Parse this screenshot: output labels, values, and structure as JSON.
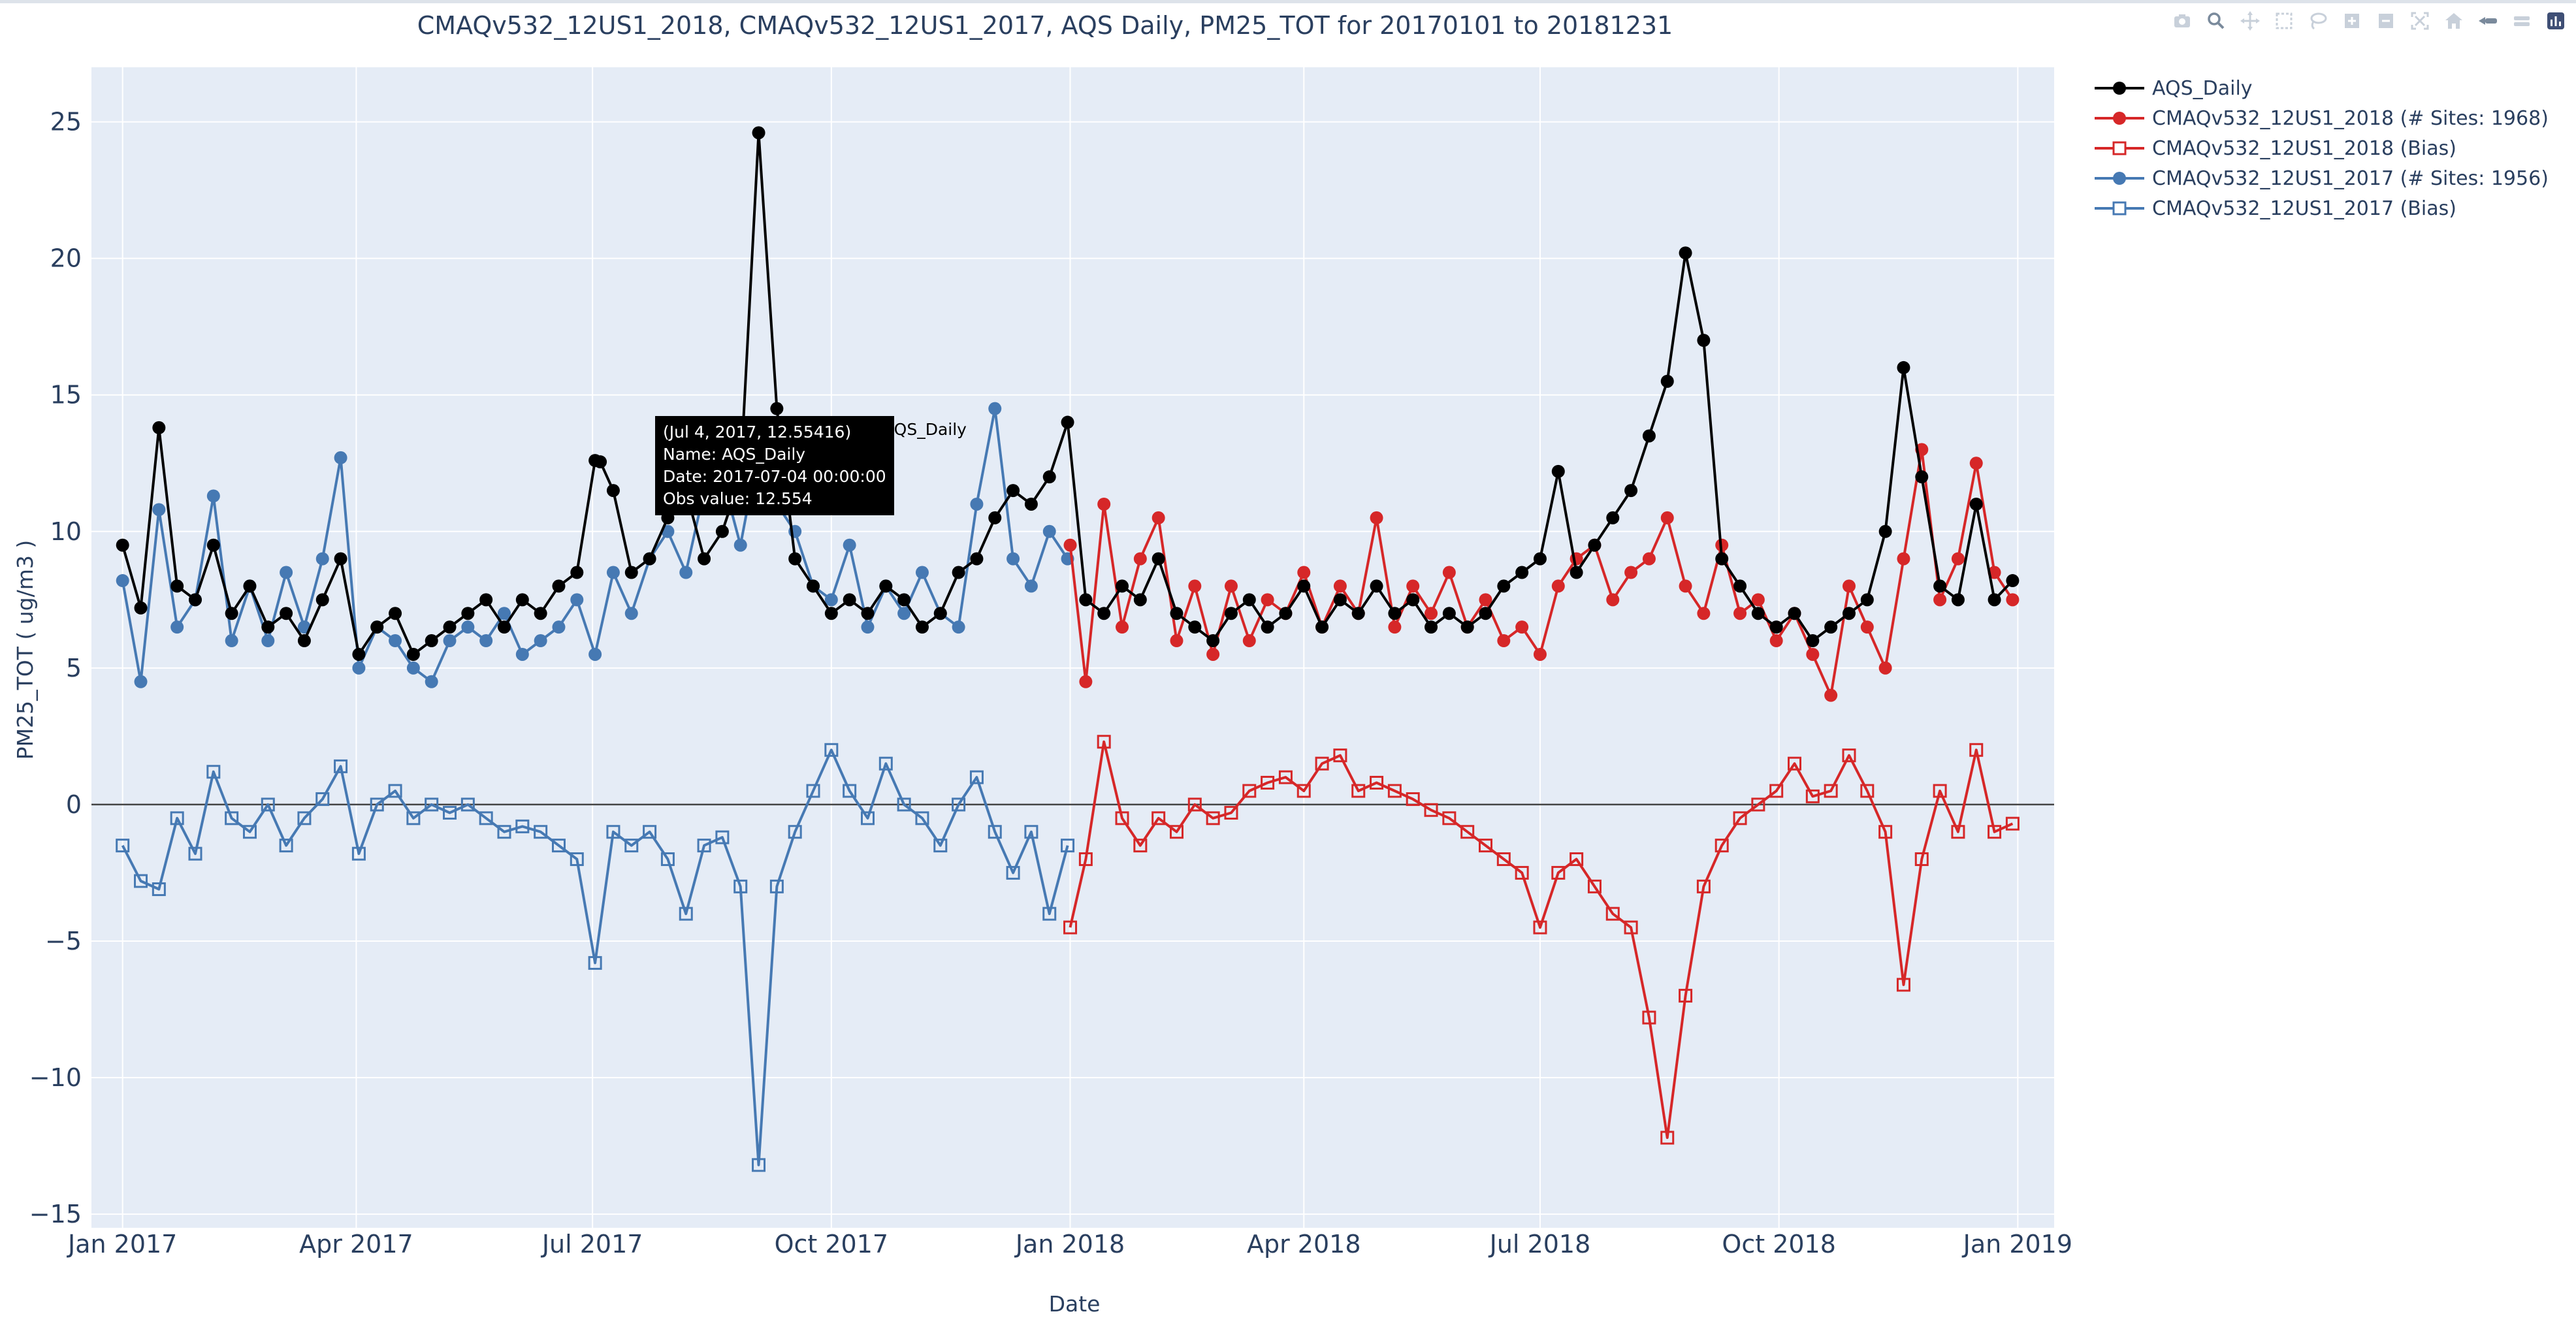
{
  "modebar": {
    "icons": [
      "camera-icon",
      "zoom-icon",
      "pan-icon",
      "box-select-icon",
      "lasso-icon",
      "zoom-in-icon",
      "zoom-out-icon",
      "autoscale-icon",
      "reset-axes-icon",
      "spike-lines-icon",
      "hover-closest-icon",
      "hover-compare-icon",
      "plotly-logo-icon"
    ]
  },
  "tooltip": {
    "header": "(Jul 4, 2017, 12.55416)",
    "line_name": "Name:  AQS_Daily",
    "line_date": "Date:  2017-07-04 00:00:00",
    "line_value": "Obs value:  12.554",
    "trace_name": "AQS_Daily"
  },
  "colors": {
    "obs": "#000000",
    "model_2018": "#d62728",
    "model_2017": "#4679b3",
    "plot_bg": "#e5ecf6",
    "grid": "#ffffff",
    "zero_line": "#444444",
    "text": "#2a3f5f"
  },
  "chart_data": {
    "type": "line",
    "title": "CMAQv532_12US1_2018, CMAQv532_12US1_2017, AQS Daily, PM25_TOT for 20170101 to 20181231",
    "xlabel": "Date",
    "ylabel": "PM25_TOT  ( ug/m3 )",
    "xlim": [
      "2016-12-20",
      "2019-01-15"
    ],
    "ylim": [
      -15.5,
      27
    ],
    "x_ticks": [
      "Jan 2017",
      "Apr 2017",
      "Jul 2017",
      "Oct 2017",
      "Jan 2018",
      "Apr 2018",
      "Jul 2018",
      "Oct 2018",
      "Jan 2019"
    ],
    "y_ticks": [
      -15,
      -10,
      -5,
      0,
      5,
      10,
      15,
      20,
      25
    ],
    "grid": true,
    "legend": "top-right, outside plot",
    "sampling": "weekly approximate reading of daily series",
    "series": [
      {
        "name": "AQS_Daily",
        "marker": "filled-circle",
        "color": "#000000",
        "x": [
          "2017-01-01",
          "2017-01-08",
          "2017-01-15",
          "2017-01-22",
          "2017-01-29",
          "2017-02-05",
          "2017-02-12",
          "2017-02-19",
          "2017-02-26",
          "2017-03-05",
          "2017-03-12",
          "2017-03-19",
          "2017-03-26",
          "2017-04-02",
          "2017-04-09",
          "2017-04-16",
          "2017-04-23",
          "2017-04-30",
          "2017-05-07",
          "2017-05-14",
          "2017-05-21",
          "2017-05-28",
          "2017-06-04",
          "2017-06-11",
          "2017-06-18",
          "2017-06-25",
          "2017-07-02",
          "2017-07-04",
          "2017-07-09",
          "2017-07-16",
          "2017-07-23",
          "2017-07-30",
          "2017-08-06",
          "2017-08-13",
          "2017-08-20",
          "2017-08-27",
          "2017-09-03",
          "2017-09-10",
          "2017-09-17",
          "2017-09-24",
          "2017-10-01",
          "2017-10-08",
          "2017-10-15",
          "2017-10-22",
          "2017-10-29",
          "2017-11-05",
          "2017-11-12",
          "2017-11-19",
          "2017-11-26",
          "2017-12-03",
          "2017-12-10",
          "2017-12-17",
          "2017-12-24",
          "2017-12-31",
          "2018-01-07",
          "2018-01-14",
          "2018-01-21",
          "2018-01-28",
          "2018-02-04",
          "2018-02-11",
          "2018-02-18",
          "2018-02-25",
          "2018-03-04",
          "2018-03-11",
          "2018-03-18",
          "2018-03-25",
          "2018-04-01",
          "2018-04-08",
          "2018-04-15",
          "2018-04-22",
          "2018-04-29",
          "2018-05-06",
          "2018-05-13",
          "2018-05-20",
          "2018-05-27",
          "2018-06-03",
          "2018-06-10",
          "2018-06-17",
          "2018-06-24",
          "2018-07-01",
          "2018-07-08",
          "2018-07-15",
          "2018-07-22",
          "2018-07-29",
          "2018-08-05",
          "2018-08-12",
          "2018-08-19",
          "2018-08-26",
          "2018-09-02",
          "2018-09-09",
          "2018-09-16",
          "2018-09-23",
          "2018-09-30",
          "2018-10-07",
          "2018-10-14",
          "2018-10-21",
          "2018-10-28",
          "2018-11-04",
          "2018-11-11",
          "2018-11-18",
          "2018-11-25",
          "2018-12-02",
          "2018-12-09",
          "2018-12-16",
          "2018-12-23",
          "2018-12-30"
        ],
        "y": [
          9.5,
          7.2,
          13.8,
          8.0,
          7.5,
          9.5,
          7.0,
          8.0,
          6.5,
          7.0,
          6.0,
          7.5,
          9.0,
          5.5,
          6.5,
          7.0,
          5.5,
          6.0,
          6.5,
          7.0,
          7.5,
          6.5,
          7.5,
          7.0,
          8.0,
          8.5,
          12.6,
          12.55,
          11.5,
          8.5,
          9.0,
          10.5,
          11.5,
          9.0,
          10.0,
          12.0,
          24.6,
          14.5,
          9.0,
          8.0,
          7.0,
          7.5,
          7.0,
          8.0,
          7.5,
          6.5,
          7.0,
          8.5,
          9.0,
          10.5,
          11.5,
          11.0,
          12.0,
          14.0,
          7.5,
          7.0,
          8.0,
          7.5,
          9.0,
          7.0,
          6.5,
          6.0,
          7.0,
          7.5,
          6.5,
          7.0,
          8.0,
          6.5,
          7.5,
          7.0,
          8.0,
          7.0,
          7.5,
          6.5,
          7.0,
          6.5,
          7.0,
          8.0,
          8.5,
          9.0,
          12.2,
          8.5,
          9.5,
          10.5,
          11.5,
          13.5,
          15.5,
          20.2,
          17.0,
          9.0,
          8.0,
          7.0,
          6.5,
          7.0,
          6.0,
          6.5,
          7.0,
          7.5,
          10.0,
          16.0,
          12.0,
          8.0,
          7.5,
          11.0,
          7.5,
          8.2
        ]
      },
      {
        "name": "CMAQv532_12US1_2018 (# Sites: 1968)",
        "marker": "filled-circle",
        "color": "#d62728",
        "x": [
          "2018-01-01",
          "2018-01-07",
          "2018-01-14",
          "2018-01-21",
          "2018-01-28",
          "2018-02-04",
          "2018-02-11",
          "2018-02-18",
          "2018-02-25",
          "2018-03-04",
          "2018-03-11",
          "2018-03-18",
          "2018-03-25",
          "2018-04-01",
          "2018-04-08",
          "2018-04-15",
          "2018-04-22",
          "2018-04-29",
          "2018-05-06",
          "2018-05-13",
          "2018-05-20",
          "2018-05-27",
          "2018-06-03",
          "2018-06-10",
          "2018-06-17",
          "2018-06-24",
          "2018-07-01",
          "2018-07-08",
          "2018-07-15",
          "2018-07-22",
          "2018-07-29",
          "2018-08-05",
          "2018-08-12",
          "2018-08-19",
          "2018-08-26",
          "2018-09-02",
          "2018-09-09",
          "2018-09-16",
          "2018-09-23",
          "2018-09-30",
          "2018-10-07",
          "2018-10-14",
          "2018-10-21",
          "2018-10-28",
          "2018-11-04",
          "2018-11-11",
          "2018-11-18",
          "2018-11-25",
          "2018-12-02",
          "2018-12-09",
          "2018-12-16",
          "2018-12-23",
          "2018-12-30"
        ],
        "y": [
          9.5,
          4.5,
          11.0,
          6.5,
          9.0,
          10.5,
          6.0,
          8.0,
          5.5,
          8.0,
          6.0,
          7.5,
          7.0,
          8.5,
          6.5,
          8.0,
          7.0,
          10.5,
          6.5,
          8.0,
          7.0,
          8.5,
          6.5,
          7.5,
          6.0,
          6.5,
          5.5,
          8.0,
          9.0,
          9.5,
          7.5,
          8.5,
          9.0,
          10.5,
          8.0,
          7.0,
          9.5,
          7.0,
          7.5,
          6.0,
          7.0,
          5.5,
          4.0,
          8.0,
          6.5,
          5.0,
          9.0,
          13.0,
          7.5,
          9.0,
          12.5,
          8.5,
          7.5
        ]
      },
      {
        "name": "CMAQv532_12US1_2018  (Bias)",
        "marker": "open-square",
        "color": "#d62728",
        "x": [
          "2018-01-01",
          "2018-01-07",
          "2018-01-14",
          "2018-01-21",
          "2018-01-28",
          "2018-02-04",
          "2018-02-11",
          "2018-02-18",
          "2018-02-25",
          "2018-03-04",
          "2018-03-11",
          "2018-03-18",
          "2018-03-25",
          "2018-04-01",
          "2018-04-08",
          "2018-04-15",
          "2018-04-22",
          "2018-04-29",
          "2018-05-06",
          "2018-05-13",
          "2018-05-20",
          "2018-05-27",
          "2018-06-03",
          "2018-06-10",
          "2018-06-17",
          "2018-06-24",
          "2018-07-01",
          "2018-07-08",
          "2018-07-15",
          "2018-07-22",
          "2018-07-29",
          "2018-08-05",
          "2018-08-12",
          "2018-08-19",
          "2018-08-26",
          "2018-09-02",
          "2018-09-09",
          "2018-09-16",
          "2018-09-23",
          "2018-09-30",
          "2018-10-07",
          "2018-10-14",
          "2018-10-21",
          "2018-10-28",
          "2018-11-04",
          "2018-11-11",
          "2018-11-18",
          "2018-11-25",
          "2018-12-02",
          "2018-12-09",
          "2018-12-16",
          "2018-12-23",
          "2018-12-30"
        ],
        "y": [
          -4.5,
          -2.0,
          2.3,
          -0.5,
          -1.5,
          -0.5,
          -1.0,
          0.0,
          -0.5,
          -0.3,
          0.5,
          0.8,
          1.0,
          0.5,
          1.5,
          1.8,
          0.5,
          0.8,
          0.5,
          0.2,
          -0.2,
          -0.5,
          -1.0,
          -1.5,
          -2.0,
          -2.5,
          -4.5,
          -2.5,
          -2.0,
          -3.0,
          -4.0,
          -4.5,
          -7.8,
          -12.2,
          -7.0,
          -3.0,
          -1.5,
          -0.5,
          0.0,
          0.5,
          1.5,
          0.3,
          0.5,
          1.8,
          0.5,
          -1.0,
          -6.6,
          -2.0,
          0.5,
          -1.0,
          2.0,
          -1.0,
          -0.7
        ]
      },
      {
        "name": "CMAQv532_12US1_2017 (# Sites: 1956)",
        "marker": "filled-circle",
        "color": "#4679b3",
        "x": [
          "2017-01-01",
          "2017-01-08",
          "2017-01-15",
          "2017-01-22",
          "2017-01-29",
          "2017-02-05",
          "2017-02-12",
          "2017-02-19",
          "2017-02-26",
          "2017-03-05",
          "2017-03-12",
          "2017-03-19",
          "2017-03-26",
          "2017-04-02",
          "2017-04-09",
          "2017-04-16",
          "2017-04-23",
          "2017-04-30",
          "2017-05-07",
          "2017-05-14",
          "2017-05-21",
          "2017-05-28",
          "2017-06-04",
          "2017-06-11",
          "2017-06-18",
          "2017-06-25",
          "2017-07-02",
          "2017-07-09",
          "2017-07-16",
          "2017-07-23",
          "2017-07-30",
          "2017-08-06",
          "2017-08-13",
          "2017-08-20",
          "2017-08-27",
          "2017-09-03",
          "2017-09-10",
          "2017-09-17",
          "2017-09-24",
          "2017-10-01",
          "2017-10-08",
          "2017-10-15",
          "2017-10-22",
          "2017-10-29",
          "2017-11-05",
          "2017-11-12",
          "2017-11-19",
          "2017-11-26",
          "2017-12-03",
          "2017-12-10",
          "2017-12-17",
          "2017-12-24",
          "2017-12-31"
        ],
        "y": [
          8.2,
          4.5,
          10.8,
          6.5,
          7.5,
          11.3,
          6.0,
          8.0,
          6.0,
          8.5,
          6.5,
          9.0,
          12.7,
          5.0,
          6.5,
          6.0,
          5.0,
          4.5,
          6.0,
          6.5,
          6.0,
          7.0,
          5.5,
          6.0,
          6.5,
          7.5,
          5.5,
          8.5,
          7.0,
          9.0,
          10.0,
          8.5,
          11.5,
          12.0,
          9.5,
          13.0,
          11.0,
          10.0,
          8.0,
          7.5,
          9.5,
          6.5,
          8.0,
          7.0,
          8.5,
          7.0,
          6.5,
          11.0,
          14.5,
          9.0,
          8.0,
          10.0,
          9.0
        ]
      },
      {
        "name": "CMAQv532_12US1_2017  (Bias)",
        "marker": "open-square",
        "color": "#4679b3",
        "x": [
          "2017-01-01",
          "2017-01-08",
          "2017-01-15",
          "2017-01-22",
          "2017-01-29",
          "2017-02-05",
          "2017-02-12",
          "2017-02-19",
          "2017-02-26",
          "2017-03-05",
          "2017-03-12",
          "2017-03-19",
          "2017-03-26",
          "2017-04-02",
          "2017-04-09",
          "2017-04-16",
          "2017-04-23",
          "2017-04-30",
          "2017-05-07",
          "2017-05-14",
          "2017-05-21",
          "2017-05-28",
          "2017-06-04",
          "2017-06-11",
          "2017-06-18",
          "2017-06-25",
          "2017-07-02",
          "2017-07-09",
          "2017-07-16",
          "2017-07-23",
          "2017-07-30",
          "2017-08-06",
          "2017-08-13",
          "2017-08-20",
          "2017-08-27",
          "2017-09-03",
          "2017-09-10",
          "2017-09-17",
          "2017-09-24",
          "2017-10-01",
          "2017-10-08",
          "2017-10-15",
          "2017-10-22",
          "2017-10-29",
          "2017-11-05",
          "2017-11-12",
          "2017-11-19",
          "2017-11-26",
          "2017-12-03",
          "2017-12-10",
          "2017-12-17",
          "2017-12-24",
          "2017-12-31"
        ],
        "y": [
          -1.5,
          -2.8,
          -3.1,
          -0.5,
          -1.8,
          1.2,
          -0.5,
          -1.0,
          0.0,
          -1.5,
          -0.5,
          0.2,
          1.4,
          -1.8,
          0.0,
          0.5,
          -0.5,
          0.0,
          -0.3,
          0.0,
          -0.5,
          -1.0,
          -0.8,
          -1.0,
          -1.5,
          -2.0,
          -5.8,
          -1.0,
          -1.5,
          -1.0,
          -2.0,
          -4.0,
          -1.5,
          -1.2,
          -3.0,
          -13.2,
          -3.0,
          -1.0,
          0.5,
          2.0,
          0.5,
          -0.5,
          1.5,
          0.0,
          -0.5,
          -1.5,
          0.0,
          1.0,
          -1.0,
          -2.5,
          -1.0,
          -4.0,
          -1.5
        ]
      }
    ]
  }
}
